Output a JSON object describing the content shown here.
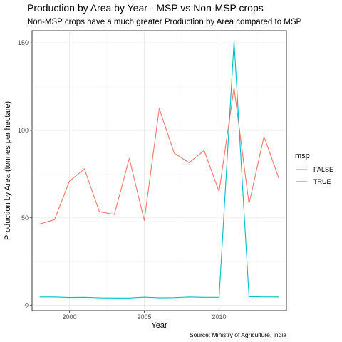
{
  "chart_data": {
    "type": "line",
    "title": "Production by Area by Year - MSP vs Non-MSP crops",
    "subtitle": "Non-MSP crops have a much greater Production by Area compared to MSP",
    "xlabel": "Year",
    "ylabel": "Production by Area (tonnes per hectare)",
    "caption": "Source: Ministry of Agriculture, India",
    "xlim": [
      1997.5,
      2014.5
    ],
    "ylim": [
      -3,
      157
    ],
    "x_ticks": [
      2000,
      2005,
      2010
    ],
    "y_ticks": [
      0,
      50,
      100,
      150
    ],
    "grid": true,
    "legend": {
      "title": "msp",
      "position": "right"
    },
    "series": [
      {
        "name": "FALSE",
        "color": "#F8766D",
        "x": [
          1998,
          1999,
          2000,
          2001,
          2002,
          2003,
          2004,
          2005,
          2006,
          2007,
          2008,
          2009,
          2010,
          2011,
          2012,
          2013,
          2014
        ],
        "values": [
          46.5,
          49,
          71,
          78,
          53.5,
          52,
          84,
          48.5,
          112.5,
          87,
          81.5,
          88.5,
          65,
          124.5,
          58,
          96.5,
          72.5
        ]
      },
      {
        "name": "TRUE",
        "color": "#00BFC4",
        "x": [
          1998,
          1999,
          2000,
          2001,
          2002,
          2003,
          2004,
          2005,
          2006,
          2007,
          2008,
          2009,
          2010,
          2011,
          2012,
          2013,
          2014
        ],
        "values": [
          4.8,
          4.8,
          4.5,
          4.6,
          4.3,
          4.2,
          4.2,
          4.7,
          4.3,
          4.4,
          4.8,
          4.6,
          4.6,
          151,
          5,
          4.8,
          4.8
        ]
      }
    ]
  }
}
